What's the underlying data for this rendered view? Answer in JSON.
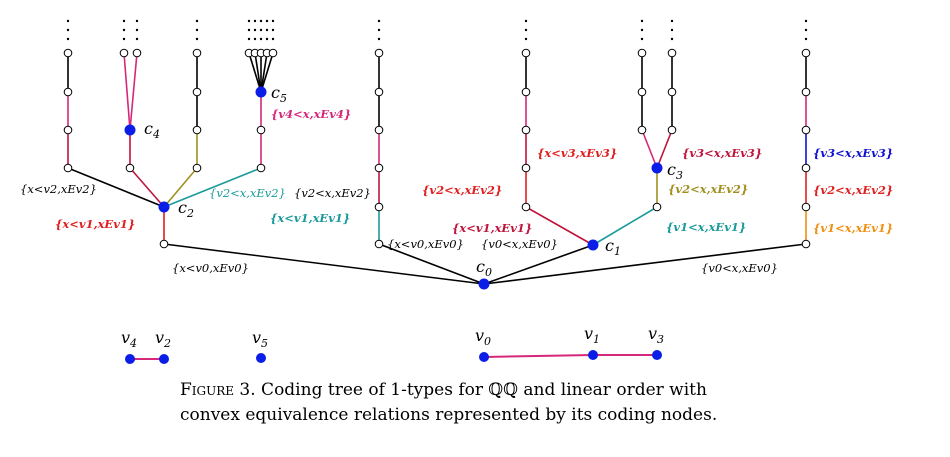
{
  "colors": {
    "black": "#000000",
    "pink": "#d6287a",
    "crimson": "#c0143c",
    "red": "#e02020",
    "olive": "#a09020",
    "teal": "#1a9a9a",
    "orange": "#f09010",
    "blue": "#1010d0",
    "node": "#0a1ee8"
  },
  "nodes": {
    "c0": "c",
    "c0_sub": "0",
    "c1": "c",
    "c1_sub": "1",
    "c2": "c",
    "c2_sub": "2",
    "c3": "c",
    "c3_sub": "3",
    "c4": "c",
    "c4_sub": "4",
    "c5": "c",
    "c5_sub": "5"
  },
  "labels": {
    "l_xv2_xEv2": "{x<v2,xEv2}",
    "l_xv1_xEv1_red": "{x<v1,xEv1}",
    "l_v2x_xEv2_teal": "{v2<x,xEv2}",
    "l_v2x_xEv2_black": "{v2<x,xEv2}",
    "l_xv1_xEv1_teal": "{x<v1,xEv1}",
    "l_v4x_xEv4": "{v4<x,xEv4}",
    "l_xv0_xEv0_left": "{x<v0,xEv0}",
    "l_xv0_xEv0_mid": "{x<v0,xEv0}",
    "l_v0x_xEv0_mid": "{v0<x,xEv0}",
    "l_v2x_xEv2_red": "{v2<x,xEv2}",
    "l_xv1_xEv1_crimson": "{x<v1,xEv1}",
    "l_xv3_xEv3": "{x<v3,xEv3}",
    "l_v3x_xEv3": "{v3<x,xEv3}",
    "l_v2x_xEv2_olive": "{v2<x,xEv2}",
    "l_v1x_xEv1_teal": "{v1<x,xEv1}",
    "l_v3x_xEv3_blue": "{v3<x,xEv3}",
    "l_v2x_xEv2_red2": "{v2<x,xEv2}",
    "l_v1x_xEv1_orange": "{v1<x,xEv1}",
    "l_v0x_xEv0_right": "{v0<x,xEv0}"
  },
  "bottom": {
    "v4": "v",
    "v4_sub": "4",
    "v2": "v",
    "v2_sub": "2",
    "v5": "v",
    "v5_sub": "5",
    "v0": "v",
    "v0_sub": "0",
    "v1": "v",
    "v1_sub": "1",
    "v3": "v",
    "v3_sub": "3"
  },
  "caption": {
    "figure": "Figure 3.",
    "line1": " Coding tree of 1-types for ℚℚ and linear order with",
    "line2": "convex equivalence relations represented by its coding nodes."
  }
}
